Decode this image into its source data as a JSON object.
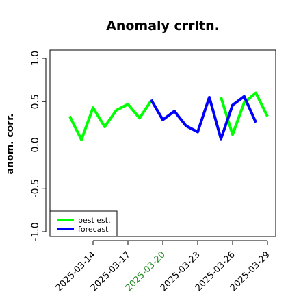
{
  "chart_data": {
    "type": "line",
    "title": "Anomaly crrltn.",
    "xlabel": "",
    "ylabel": "anom. corr.",
    "ylim": [
      -1.0,
      1.0
    ],
    "yticks": [
      "-1.0",
      "-0.5",
      "0.0",
      "0.5",
      "1.0"
    ],
    "x": [
      "2025-03-12",
      "2025-03-13",
      "2025-03-14",
      "2025-03-15",
      "2025-03-16",
      "2025-03-17",
      "2025-03-18",
      "2025-03-19",
      "2025-03-20",
      "2025-03-21",
      "2025-03-22",
      "2025-03-23",
      "2025-03-24",
      "2025-03-25",
      "2025-03-26",
      "2025-03-27",
      "2025-03-28",
      "2025-03-29"
    ],
    "xtick_labels": [
      "2025-03-14",
      "2025-03-17",
      "2025-03-20",
      "2025-03-23",
      "2025-03-26",
      "2025-03-29"
    ],
    "highlighted_tick": "2025-03-20",
    "highlight_color": "#228B22",
    "reference_line": 0.0,
    "legend_placement": "bottom-left",
    "grid": false,
    "series": [
      {
        "name": "best est.",
        "color": "#00ff00",
        "values": [
          0.33,
          0.06,
          0.43,
          0.21,
          0.4,
          0.47,
          0.31,
          0.51,
          null,
          null,
          null,
          null,
          null,
          0.55,
          0.12,
          0.49,
          0.6,
          0.33
        ]
      },
      {
        "name": "forecast",
        "color": "#0000ff",
        "values": [
          null,
          null,
          null,
          null,
          null,
          null,
          null,
          0.52,
          0.29,
          0.39,
          0.22,
          0.15,
          0.55,
          0.07,
          0.46,
          0.56,
          0.26,
          null
        ]
      }
    ]
  }
}
